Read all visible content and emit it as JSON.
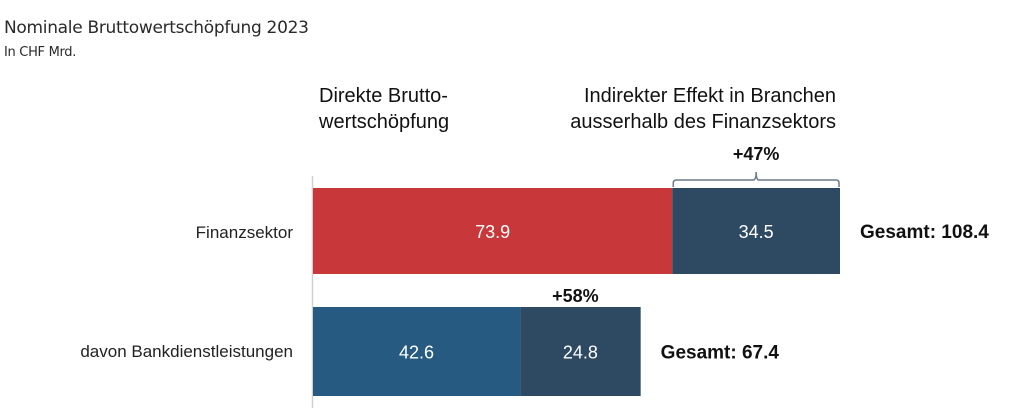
{
  "header": {
    "title": "Nominale Bruttowertschöpfung 2023",
    "subtitle": "In CHF Mrd."
  },
  "chart_data": {
    "type": "bar",
    "orientation": "horizontal",
    "stacked": true,
    "title": "Nominale Bruttowertschöpfung 2023",
    "subtitle": "In CHF Mrd.",
    "categories": [
      "Finanzsektor",
      "davon Bankdienstleistungen"
    ],
    "series": [
      {
        "name": "Direkte Bruttowertschöpfung",
        "header_lines": [
          "Direkte Brutto-",
          "wertschöpfung"
        ],
        "values": [
          73.9,
          42.6
        ],
        "colors": [
          "#c8373a",
          "#265a80"
        ]
      },
      {
        "name": "Indirekter Effekt in Branchen ausserhalb des Finanzsektors",
        "header_lines": [
          "Indirekter Effekt in Branchen",
          "ausserhalb des Finanzsektors"
        ],
        "values": [
          34.5,
          24.8
        ],
        "colors": [
          "#2d4a62",
          "#2d4a62"
        ]
      }
    ],
    "value_labels": [
      [
        "73.9",
        "34.5"
      ],
      [
        "42.6",
        "24.8"
      ]
    ],
    "totals": [
      108.4,
      67.4
    ],
    "total_labels": [
      "Gesamt: 108.4",
      "Gesamt: 67.4"
    ],
    "increase_labels": [
      "+47%",
      "+58%"
    ],
    "xlim": [
      0,
      108.4
    ],
    "xlabel": "",
    "ylabel": "",
    "grid": false,
    "legend": "column headers above bars"
  }
}
